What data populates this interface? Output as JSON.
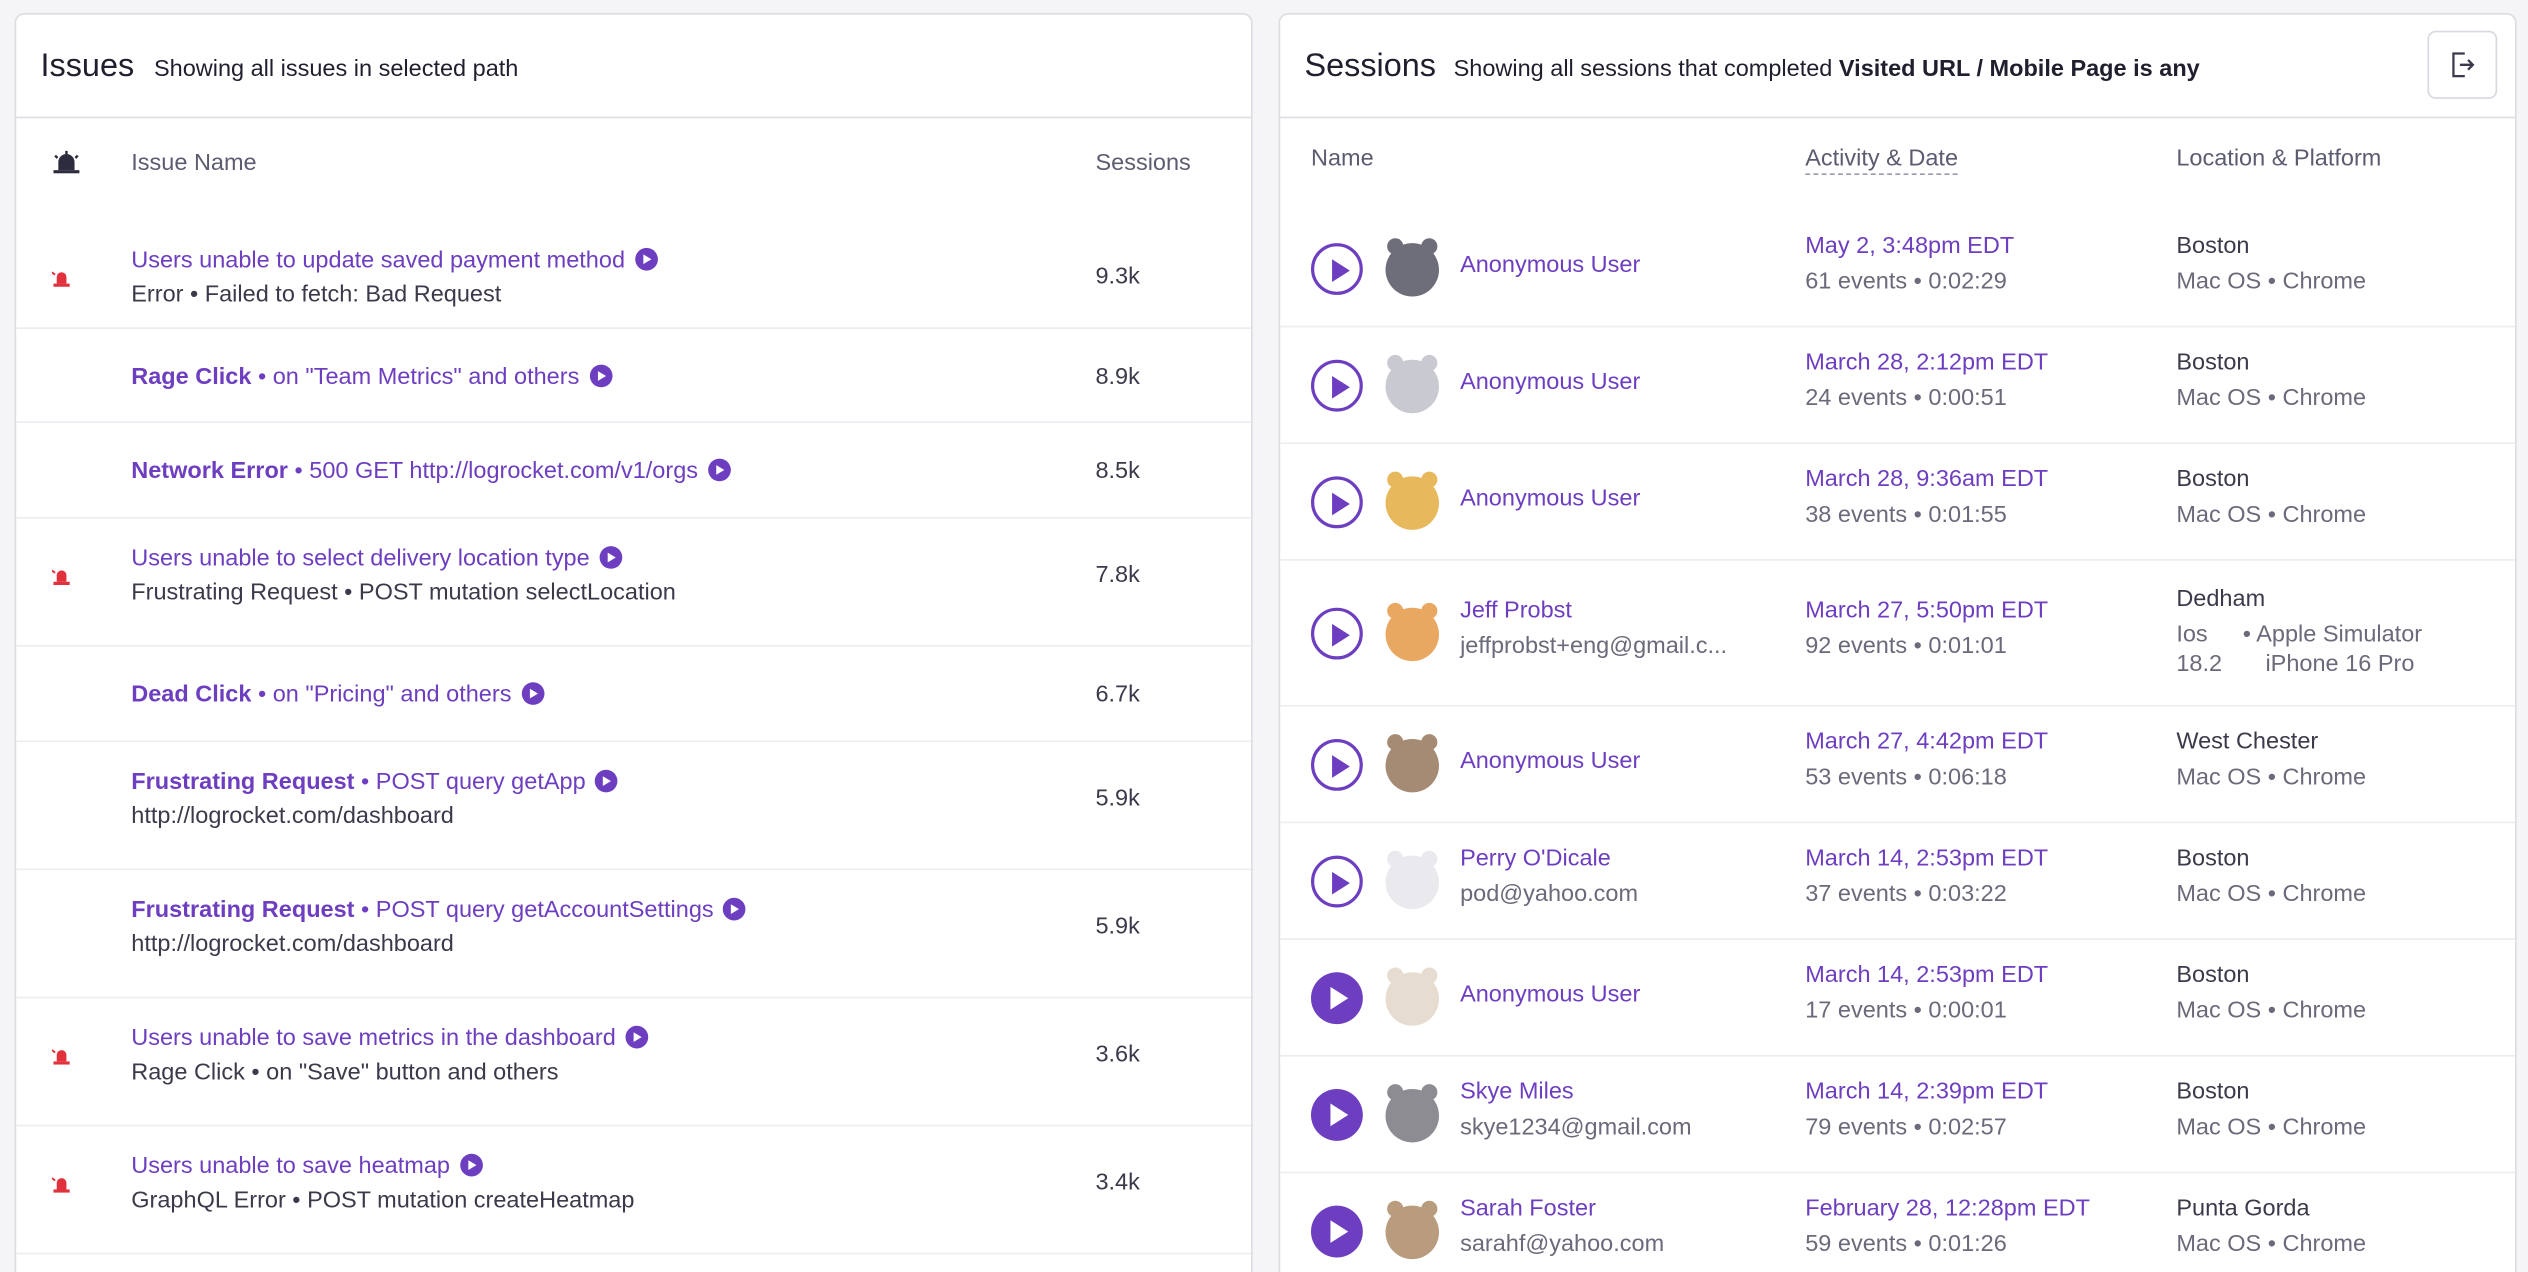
{
  "issues": {
    "title": "Issues",
    "subtitle": "Showing all issues in selected path",
    "col_name": "Issue Name",
    "col_sessions": "Sessions",
    "rows": [
      {
        "label_bold": "",
        "label": "Users unable to update saved payment method",
        "sub": "Error • Failed to fetch: Bad Request",
        "count": "9.3k",
        "alert": true
      },
      {
        "label_bold": "Rage Click",
        "label": " • on \"Team Metrics\" and others",
        "sub": "",
        "count": "8.9k",
        "alert": false
      },
      {
        "label_bold": "Network Error",
        "label": " • 500 GET http://logrocket.com/v1/orgs",
        "sub": "",
        "count": "8.5k",
        "alert": false
      },
      {
        "label_bold": "",
        "label": "Users unable to select delivery location type",
        "sub": "Frustrating Request • POST mutation selectLocation",
        "count": "7.8k",
        "alert": true
      },
      {
        "label_bold": "Dead Click",
        "label": " • on \"Pricing\" and others",
        "sub": "",
        "count": "6.7k",
        "alert": false
      },
      {
        "label_bold": "Frustrating Request",
        "label": " • POST query getApp",
        "sub": "http://logrocket.com/dashboard",
        "count": "5.9k",
        "alert": false
      },
      {
        "label_bold": "Frustrating Request",
        "label": " • POST query getAccountSettings",
        "sub": "http://logrocket.com/dashboard",
        "count": "5.9k",
        "alert": false
      },
      {
        "label_bold": "",
        "label": "Users unable to save metrics in the dashboard",
        "sub": "Rage Click • on \"Save\" button and others",
        "count": "3.6k",
        "alert": true
      },
      {
        "label_bold": "",
        "label": "Users unable to save heatmap",
        "sub": "GraphQL Error • POST mutation createHeatmap",
        "count": "3.4k",
        "alert": true
      }
    ]
  },
  "sessions": {
    "title": "Sessions",
    "subtitle_prefix": "Showing all sessions that completed ",
    "subtitle_bold": "Visited URL / Mobile Page is any",
    "col_name": "Name",
    "col_activity": "Activity & Date",
    "col_location": "Location & Platform",
    "rows": [
      {
        "name": "Anonymous User",
        "email": "",
        "date": "May 2, 3:48pm EDT",
        "events": "61 events • 0:02:29",
        "location": "Boston",
        "platform": "Mac OS • Chrome",
        "avatar_color": "#6e6e7a",
        "watched": false
      },
      {
        "name": "Anonymous User",
        "email": "",
        "date": "March 28, 2:12pm EDT",
        "events": "24 events • 0:00:51",
        "location": "Boston",
        "platform": "Mac OS • Chrome",
        "avatar_color": "#c9c9d1",
        "watched": false
      },
      {
        "name": "Anonymous User",
        "email": "",
        "date": "March 28, 9:36am EDT",
        "events": "38 events • 0:01:55",
        "location": "Boston",
        "platform": "Mac OS • Chrome",
        "avatar_color": "#e8b85c",
        "watched": false
      },
      {
        "name": "Jeff Probst",
        "email": "jeffprobst+eng@gmail.c...",
        "date": "March 27, 5:50pm EDT",
        "events": "92 events • 0:01:01",
        "location": "Dedham",
        "platform_a": "Ios",
        "platform_a2": "18.2",
        "platform_b": "• Apple Simulator",
        "platform_b2": "iPhone 16 Pro",
        "avatar_color": "#e9a862",
        "watched": false
      },
      {
        "name": "Anonymous User",
        "email": "",
        "date": "March 27, 4:42pm EDT",
        "events": "53 events • 0:06:18",
        "location": "West Chester",
        "platform": "Mac OS • Chrome",
        "avatar_color": "#a58b74",
        "watched": false
      },
      {
        "name": "Perry O'Dicale",
        "email": "pod@yahoo.com",
        "date": "March 14, 2:53pm EDT",
        "events": "37 events • 0:03:22",
        "location": "Boston",
        "platform": "Mac OS • Chrome",
        "avatar_color": "#e9e9ee",
        "watched": false
      },
      {
        "name": "Anonymous User",
        "email": "",
        "date": "March 14, 2:53pm EDT",
        "events": "17 events • 0:00:01",
        "location": "Boston",
        "platform": "Mac OS • Chrome",
        "avatar_color": "#e6ddd0",
        "watched": true
      },
      {
        "name": "Skye Miles",
        "email": "skye1234@gmail.com",
        "date": "March 14, 2:39pm EDT",
        "events": "79 events • 0:02:57",
        "location": "Boston",
        "platform": "Mac OS • Chrome",
        "avatar_color": "#8e8c93",
        "watched": true
      },
      {
        "name": "Sarah Foster",
        "email": "sarahf@yahoo.com",
        "date": "February 28, 12:28pm EDT",
        "events": "59 events • 0:01:26",
        "location": "Punta Gorda",
        "platform": "Mac OS • Chrome",
        "avatar_color": "#b89c7d",
        "watched": true
      }
    ]
  },
  "icons": {
    "issue_header": "siren-icon",
    "issue_alert": "alert-siren-icon",
    "export": "export-icon",
    "play": "play-icon"
  },
  "colors": {
    "accent": "#6d3fc0",
    "alert": "#e0313d"
  }
}
